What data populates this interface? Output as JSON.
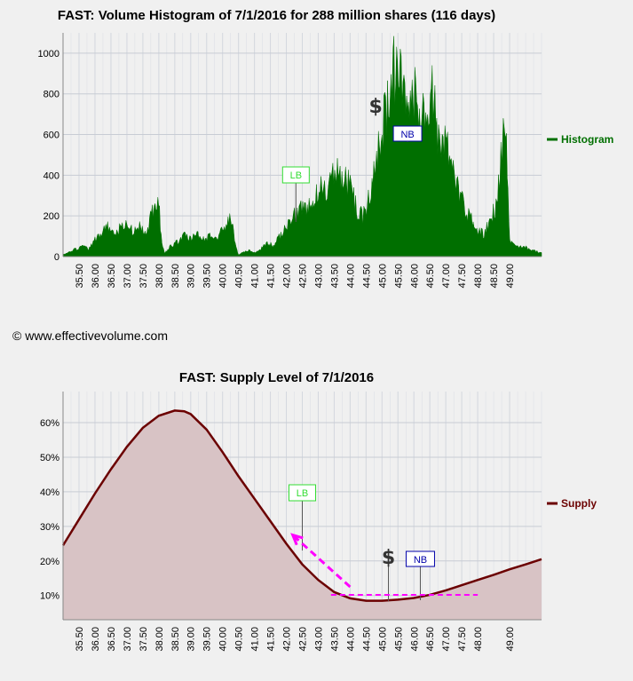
{
  "header": {
    "title1": "FAST: Volume Histogram of 7/1/2016 for 288 million shares (116 days)",
    "title2": "FAST: Supply Level of 7/1/2016",
    "copyright": "© www.effectivevolume.com"
  },
  "colors": {
    "histogram": "#006f00",
    "supply_line": "#6b0000",
    "supply_fill": "#d8c3c5",
    "lb": "#33dd33",
    "nb": "#0000aa",
    "arrow": "#ff00ff",
    "grid": "#c8ccd4"
  },
  "chart_data": [
    {
      "type": "area",
      "title": "FAST: Volume Histogram of 7/1/2016 for 288 million shares (116 days)",
      "x_ticks": [
        "35.50",
        "36.00",
        "36.50",
        "37.00",
        "37.50",
        "38.00",
        "38.50",
        "39.00",
        "39.50",
        "40.00",
        "40.50",
        "41.00",
        "41.50",
        "42.00",
        "42.50",
        "43.00",
        "43.50",
        "44.00",
        "44.50",
        "45.00",
        "45.50",
        "46.00",
        "46.50",
        "47.00",
        "47.50",
        "48.00",
        "48.50",
        "49.00"
      ],
      "xlim": [
        35.0,
        50.0
      ],
      "ylim": [
        0,
        1100
      ],
      "y_ticks": [
        0,
        200,
        400,
        600,
        800,
        1000
      ],
      "legend": "Histogram",
      "legend_position": "right",
      "grid": true,
      "series": [
        {
          "name": "Histogram",
          "x": [
            35.0,
            35.2,
            35.4,
            35.6,
            35.8,
            36.0,
            36.2,
            36.4,
            36.6,
            36.8,
            37.0,
            37.2,
            37.4,
            37.6,
            37.8,
            38.0,
            38.1,
            38.2,
            38.4,
            38.6,
            38.8,
            39.0,
            39.2,
            39.4,
            39.6,
            39.8,
            40.0,
            40.2,
            40.3,
            40.4,
            40.5,
            40.6,
            40.8,
            41.0,
            41.2,
            41.4,
            41.6,
            41.8,
            42.0,
            42.2,
            42.4,
            42.6,
            42.8,
            43.0,
            43.2,
            43.4,
            43.6,
            43.8,
            44.0,
            44.2,
            44.4,
            44.6,
            44.8,
            45.0,
            45.2,
            45.4,
            45.6,
            45.8,
            46.0,
            46.2,
            46.4,
            46.6,
            46.8,
            47.0,
            47.2,
            47.4,
            47.6,
            47.8,
            48.0,
            48.2,
            48.4,
            48.6,
            48.7,
            48.8,
            48.9,
            49.0,
            49.2,
            49.4,
            49.6,
            49.8,
            50.0
          ],
          "values": [
            10,
            25,
            40,
            55,
            40,
            90,
            130,
            160,
            120,
            150,
            170,
            130,
            160,
            110,
            250,
            290,
            60,
            20,
            60,
            80,
            110,
            90,
            120,
            90,
            110,
            100,
            140,
            210,
            170,
            60,
            10,
            20,
            35,
            20,
            40,
            70,
            60,
            110,
            150,
            200,
            260,
            270,
            280,
            350,
            360,
            390,
            470,
            420,
            380,
            250,
            210,
            320,
            530,
            700,
            860,
            1000,
            900,
            700,
            860,
            700,
            820,
            880,
            560,
            600,
            450,
            350,
            250,
            200,
            140,
            120,
            200,
            280,
            450,
            700,
            600,
            80,
            50,
            60,
            40,
            30,
            20
          ]
        }
      ],
      "markers": [
        {
          "label": "LB",
          "x": 42.3
        },
        {
          "label": "$",
          "x": 44.8
        },
        {
          "label": "NB",
          "x": 45.8
        }
      ]
    },
    {
      "type": "area",
      "title": "FAST: Supply Level of 7/1/2016",
      "x_ticks": [
        "35.50",
        "36.00",
        "36.50",
        "37.00",
        "37.50",
        "38.00",
        "38.50",
        "39.00",
        "39.50",
        "40.00",
        "40.50",
        "41.00",
        "41.50",
        "42.00",
        "42.50",
        "43.00",
        "43.50",
        "44.00",
        "44.50",
        "45.00",
        "45.50",
        "46.00",
        "46.50",
        "47.00",
        "47.50",
        "48.00",
        "49.00"
      ],
      "xlim": [
        35.0,
        50.0
      ],
      "ylim": [
        3,
        69
      ],
      "y_ticks": [
        "10%",
        "20%",
        "30%",
        "40%",
        "50%",
        "60%"
      ],
      "legend": "Supply",
      "legend_position": "right",
      "grid": true,
      "series": [
        {
          "name": "Supply",
          "x": [
            35.0,
            35.5,
            36.0,
            36.5,
            37.0,
            37.5,
            38.0,
            38.5,
            38.8,
            39.0,
            39.5,
            40.0,
            40.5,
            41.0,
            41.5,
            42.0,
            42.5,
            43.0,
            43.5,
            44.0,
            44.5,
            45.0,
            45.5,
            46.0,
            46.5,
            47.0,
            47.5,
            48.0,
            48.5,
            49.0,
            49.5,
            50.0
          ],
          "values": [
            24.5,
            32,
            39.5,
            46.5,
            53,
            58.5,
            62,
            63.5,
            63.3,
            62.5,
            58,
            51.5,
            44.5,
            38,
            31.5,
            25,
            19,
            14.5,
            11,
            9.2,
            8.5,
            8.5,
            8.8,
            9.3,
            10.2,
            11.5,
            13,
            14.5,
            16,
            17.6,
            19,
            20.5
          ]
        }
      ],
      "markers": [
        {
          "label": "LB",
          "x": 42.5
        },
        {
          "label": "$",
          "x": 45.2
        },
        {
          "label": "NB",
          "x": 46.2
        }
      ],
      "arrow": {
        "from": [
          44.0,
          12.5
        ],
        "to": [
          42.2,
          27.5
        ]
      },
      "support_line": {
        "y": 10.2,
        "x_range": [
          43.4,
          48.0
        ]
      }
    }
  ]
}
